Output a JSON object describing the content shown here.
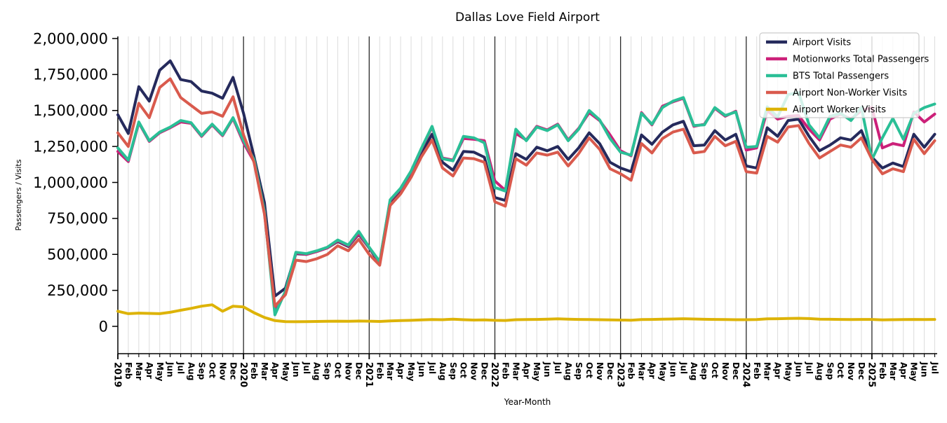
{
  "title": "Dallas Love Field Airport",
  "chart_data": {
    "type": "line",
    "title": "Dallas Love Field Airport",
    "xlabel": "Year-Month",
    "ylabel": "Passengers / Visits",
    "ylim": [
      0,
      2000000
    ],
    "ytick_values": [
      0,
      250000,
      500000,
      750000,
      1000000,
      1250000,
      1500000,
      1750000,
      2000000
    ],
    "ytick_labels": [
      "0",
      "250,000",
      "500,000",
      "750,000",
      "1,000,000",
      "1,250,000",
      "1,500,000",
      "1,750,000",
      "2,000,000"
    ],
    "grid": "vertical monthly gridlines, dark vertical lines at each January",
    "legend_position": "upper right",
    "year_line_indices": [
      12,
      24,
      36,
      48,
      60,
      72
    ],
    "x": [
      "2019-01",
      "2019-02",
      "2019-03",
      "2019-04",
      "2019-05",
      "2019-06",
      "2019-07",
      "2019-08",
      "2019-09",
      "2019-10",
      "2019-11",
      "2019-12",
      "2020-01",
      "2020-02",
      "2020-03",
      "2020-04",
      "2020-05",
      "2020-06",
      "2020-07",
      "2020-08",
      "2020-09",
      "2020-10",
      "2020-11",
      "2020-12",
      "2021-01",
      "2021-02",
      "2021-03",
      "2021-04",
      "2021-05",
      "2021-06",
      "2021-07",
      "2021-08",
      "2021-09",
      "2021-10",
      "2021-11",
      "2021-12",
      "2022-01",
      "2022-02",
      "2022-03",
      "2022-04",
      "2022-05",
      "2022-06",
      "2022-07",
      "2022-08",
      "2022-09",
      "2022-10",
      "2022-11",
      "2022-12",
      "2023-01",
      "2023-02",
      "2023-03",
      "2023-04",
      "2023-05",
      "2023-06",
      "2023-07",
      "2023-08",
      "2023-09",
      "2023-10",
      "2023-11",
      "2023-12",
      "2024-01",
      "2024-02",
      "2024-03",
      "2024-04",
      "2024-05",
      "2024-06",
      "2024-07",
      "2024-08",
      "2024-09",
      "2024-10",
      "2024-11",
      "2024-12",
      "2025-01",
      "2025-02",
      "2025-03",
      "2025-04",
      "2025-05",
      "2025-06",
      "2025-07"
    ],
    "xtick_labels": [
      "2019",
      "Feb",
      "Mar",
      "Apr",
      "May",
      "Jun",
      "Jul",
      "Aug",
      "Sep",
      "Oct",
      "Nov",
      "Dec",
      "2020",
      "Feb",
      "Mar",
      "Apr",
      "May",
      "Jun",
      "Jul",
      "Aug",
      "Sep",
      "Oct",
      "Nov",
      "Dec",
      "2021",
      "Feb",
      "Mar",
      "Apr",
      "May",
      "Jun",
      "Jul",
      "Aug",
      "Sep",
      "Oct",
      "Nov",
      "Dec",
      "2022",
      "Feb",
      "Mar",
      "Apr",
      "May",
      "Jun",
      "Jul",
      "Aug",
      "Sep",
      "Oct",
      "Nov",
      "Dec",
      "2023",
      "Feb",
      "Mar",
      "Apr",
      "May",
      "Jun",
      "Jul",
      "Aug",
      "Sep",
      "Oct",
      "Nov",
      "Dec",
      "2024",
      "Feb",
      "Mar",
      "Apr",
      "May",
      "Jun",
      "Jul",
      "Aug",
      "Sep",
      "Oct",
      "Nov",
      "Dec",
      "2025",
      "Feb",
      "Mar",
      "Apr",
      "May",
      "Jun",
      "Jul"
    ],
    "series": [
      {
        "name": "Airport Visits",
        "color": "#252a5c",
        "values": [
          1470000,
          1340000,
          1665000,
          1565000,
          1780000,
          1845000,
          1715000,
          1700000,
          1635000,
          1620000,
          1585000,
          1730000,
          1480000,
          1180000,
          860000,
          210000,
          265000,
          505000,
          500000,
          520000,
          545000,
          590000,
          555000,
          640000,
          545000,
          435000,
          860000,
          940000,
          1060000,
          1205000,
          1335000,
          1140000,
          1085000,
          1215000,
          1210000,
          1175000,
          895000,
          875000,
          1200000,
          1160000,
          1245000,
          1220000,
          1250000,
          1160000,
          1240000,
          1345000,
          1270000,
          1140000,
          1100000,
          1075000,
          1330000,
          1265000,
          1350000,
          1400000,
          1425000,
          1255000,
          1260000,
          1360000,
          1295000,
          1335000,
          1115000,
          1100000,
          1380000,
          1320000,
          1430000,
          1440000,
          1320000,
          1220000,
          1260000,
          1310000,
          1295000,
          1360000,
          1175000,
          1100000,
          1135000,
          1110000,
          1335000,
          1245000,
          1335000
        ]
      },
      {
        "name": "Motionworks Total Passengers",
        "color": "#cc2079",
        "values": [
          1215000,
          1145000,
          1415000,
          1285000,
          1345000,
          1380000,
          1420000,
          1410000,
          1320000,
          1400000,
          1325000,
          1445000,
          1275000,
          1145000,
          790000,
          120000,
          235000,
          510000,
          500000,
          520000,
          545000,
          595000,
          560000,
          645000,
          548000,
          445000,
          875000,
          955000,
          1075000,
          1235000,
          1385000,
          1170000,
          1155000,
          1305000,
          1300000,
          1290000,
          1010000,
          945000,
          1340000,
          1295000,
          1390000,
          1365000,
          1405000,
          1295000,
          1375000,
          1485000,
          1430000,
          1330000,
          1220000,
          1185000,
          1485000,
          1400000,
          1530000,
          1560000,
          1585000,
          1390000,
          1405000,
          1515000,
          1460000,
          1495000,
          1225000,
          1240000,
          1500000,
          1440000,
          1460000,
          1465000,
          1370000,
          1295000,
          1440000,
          1475000,
          1440000,
          1500000,
          1520000,
          1240000,
          1270000,
          1255000,
          1490000,
          1420000,
          1475000
        ]
      },
      {
        "name": "BTS Total Passengers",
        "color": "#2abf96",
        "values": [
          1240000,
          1155000,
          1420000,
          1290000,
          1350000,
          1385000,
          1430000,
          1415000,
          1325000,
          1405000,
          1330000,
          1450000,
          1290000,
          1160000,
          800000,
          80000,
          245000,
          515000,
          505000,
          525000,
          550000,
          600000,
          565000,
          660000,
          550000,
          450000,
          880000,
          960000,
          1080000,
          1240000,
          1390000,
          1165000,
          1150000,
          1320000,
          1310000,
          1275000,
          965000,
          940000,
          1370000,
          1290000,
          1385000,
          1360000,
          1400000,
          1290000,
          1370000,
          1500000,
          1435000,
          1305000,
          1210000,
          1190000,
          1480000,
          1405000,
          1520000,
          1565000,
          1590000,
          1395000,
          1400000,
          1520000,
          1465000,
          1490000,
          1245000,
          1250000,
          1525000,
          1455000,
          1610000,
          1625000,
          1400000,
          1310000,
          1460000,
          1480000,
          1430000,
          1520000,
          1160000,
          1310000,
          1445000,
          1300000,
          1480000,
          1520000,
          1545000
        ]
      },
      {
        "name": "Airport Non-Worker Visits",
        "color": "#d95a4d",
        "values": [
          1345000,
          1250000,
          1550000,
          1450000,
          1660000,
          1720000,
          1590000,
          1535000,
          1480000,
          1490000,
          1460000,
          1595000,
          1330000,
          1140000,
          780000,
          140000,
          220000,
          460000,
          450000,
          470000,
          500000,
          560000,
          525000,
          605000,
          500000,
          425000,
          840000,
          920000,
          1035000,
          1180000,
          1295000,
          1100000,
          1045000,
          1170000,
          1165000,
          1140000,
          865000,
          835000,
          1165000,
          1120000,
          1205000,
          1190000,
          1210000,
          1115000,
          1200000,
          1310000,
          1230000,
          1095000,
          1060000,
          1015000,
          1270000,
          1205000,
          1305000,
          1350000,
          1370000,
          1205000,
          1215000,
          1320000,
          1255000,
          1285000,
          1075000,
          1065000,
          1320000,
          1280000,
          1385000,
          1395000,
          1270000,
          1170000,
          1215000,
          1260000,
          1245000,
          1310000,
          1160000,
          1060000,
          1095000,
          1075000,
          1300000,
          1200000,
          1290000
        ]
      },
      {
        "name": "Airport Worker Visits",
        "color": "#ddb306",
        "values": [
          105000,
          88000,
          92000,
          90000,
          88000,
          98000,
          112000,
          125000,
          140000,
          150000,
          105000,
          140000,
          135000,
          95000,
          62000,
          40000,
          33000,
          32000,
          33000,
          34000,
          35000,
          36000,
          35000,
          37000,
          36000,
          34000,
          38000,
          40000,
          42000,
          45000,
          47000,
          46000,
          50000,
          46000,
          44000,
          45000,
          42000,
          41000,
          46000,
          47000,
          48000,
          50000,
          52000,
          50000,
          48000,
          47000,
          46000,
          45000,
          44000,
          43000,
          47000,
          48000,
          50000,
          51000,
          53000,
          51000,
          49000,
          48000,
          47000,
          46000,
          46000,
          47000,
          52000,
          53000,
          55000,
          56000,
          54000,
          50000,
          49000,
          48000,
          47000,
          48000,
          48000,
          45000,
          46000,
          47000,
          48000,
          47000,
          48000
        ]
      }
    ]
  },
  "legend": {
    "entries": [
      "Airport Visits",
      "Motionworks Total Passengers",
      "BTS Total Passengers",
      "Airport Non-Worker Visits",
      "Airport Worker Visits"
    ]
  },
  "styles": {
    "background": "#ffffff",
    "grid_color": "#dcdcdc",
    "year_line_color": "#2a2a2a",
    "axis_color": "#000000",
    "legend_border": "#cccccc",
    "legend_fill": "rgba(255,255,255,0.8)"
  }
}
